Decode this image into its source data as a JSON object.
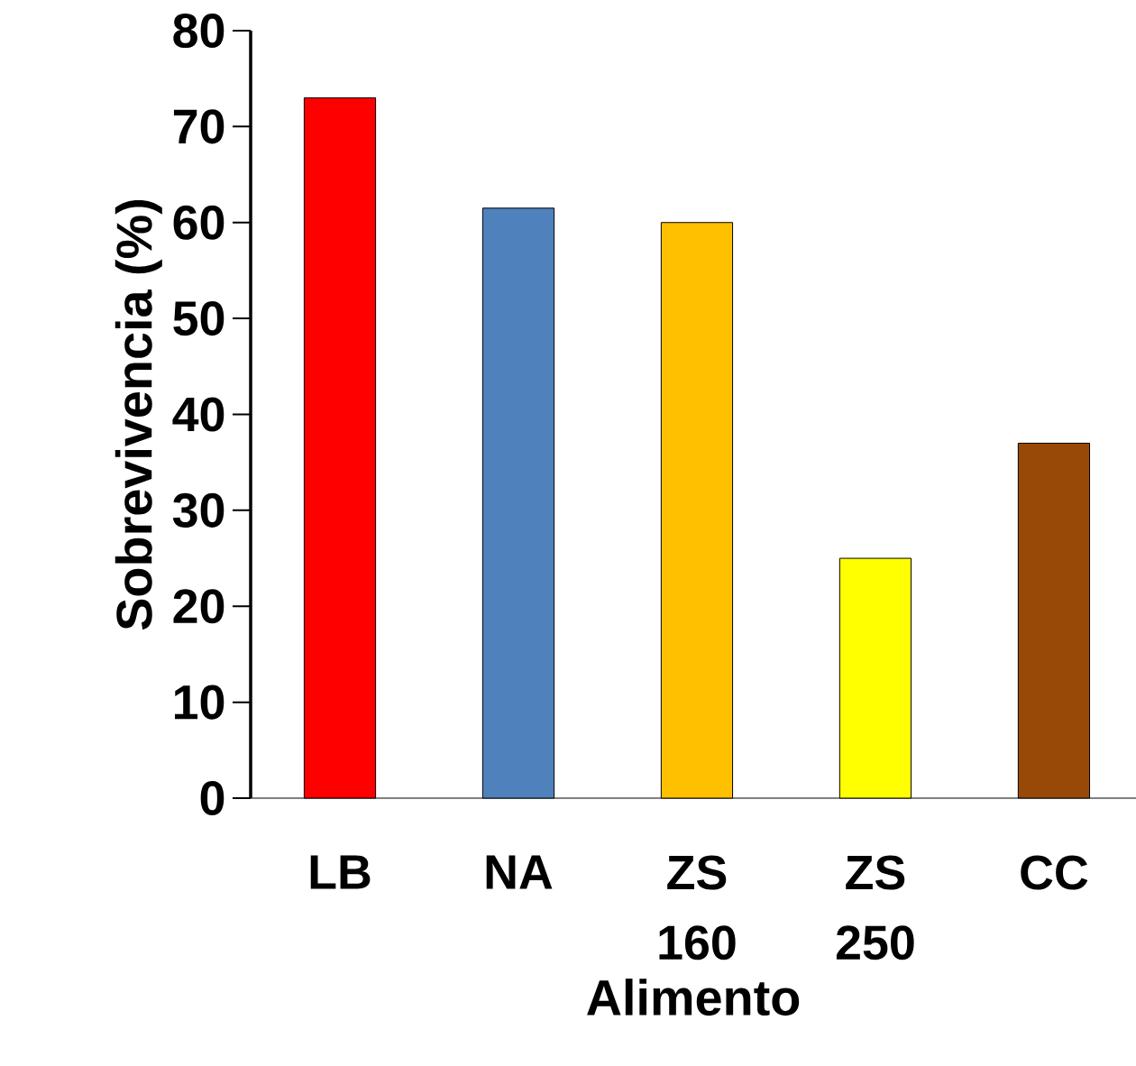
{
  "chart_data": {
    "type": "bar",
    "xlabel": "Alimento",
    "ylabel": "Sobrevivencia (%)",
    "categories": [
      "LB",
      "NA",
      "ZS 160",
      "ZS 250",
      "CC"
    ],
    "values": [
      73,
      61.5,
      60,
      25,
      37
    ],
    "colors": [
      "#ff0000",
      "#4f81bd",
      "#ffc000",
      "#ffff00",
      "#984807"
    ],
    "ylim": [
      0,
      80
    ],
    "yticks": [
      0,
      10,
      20,
      30,
      40,
      50,
      60,
      70,
      80
    ]
  }
}
